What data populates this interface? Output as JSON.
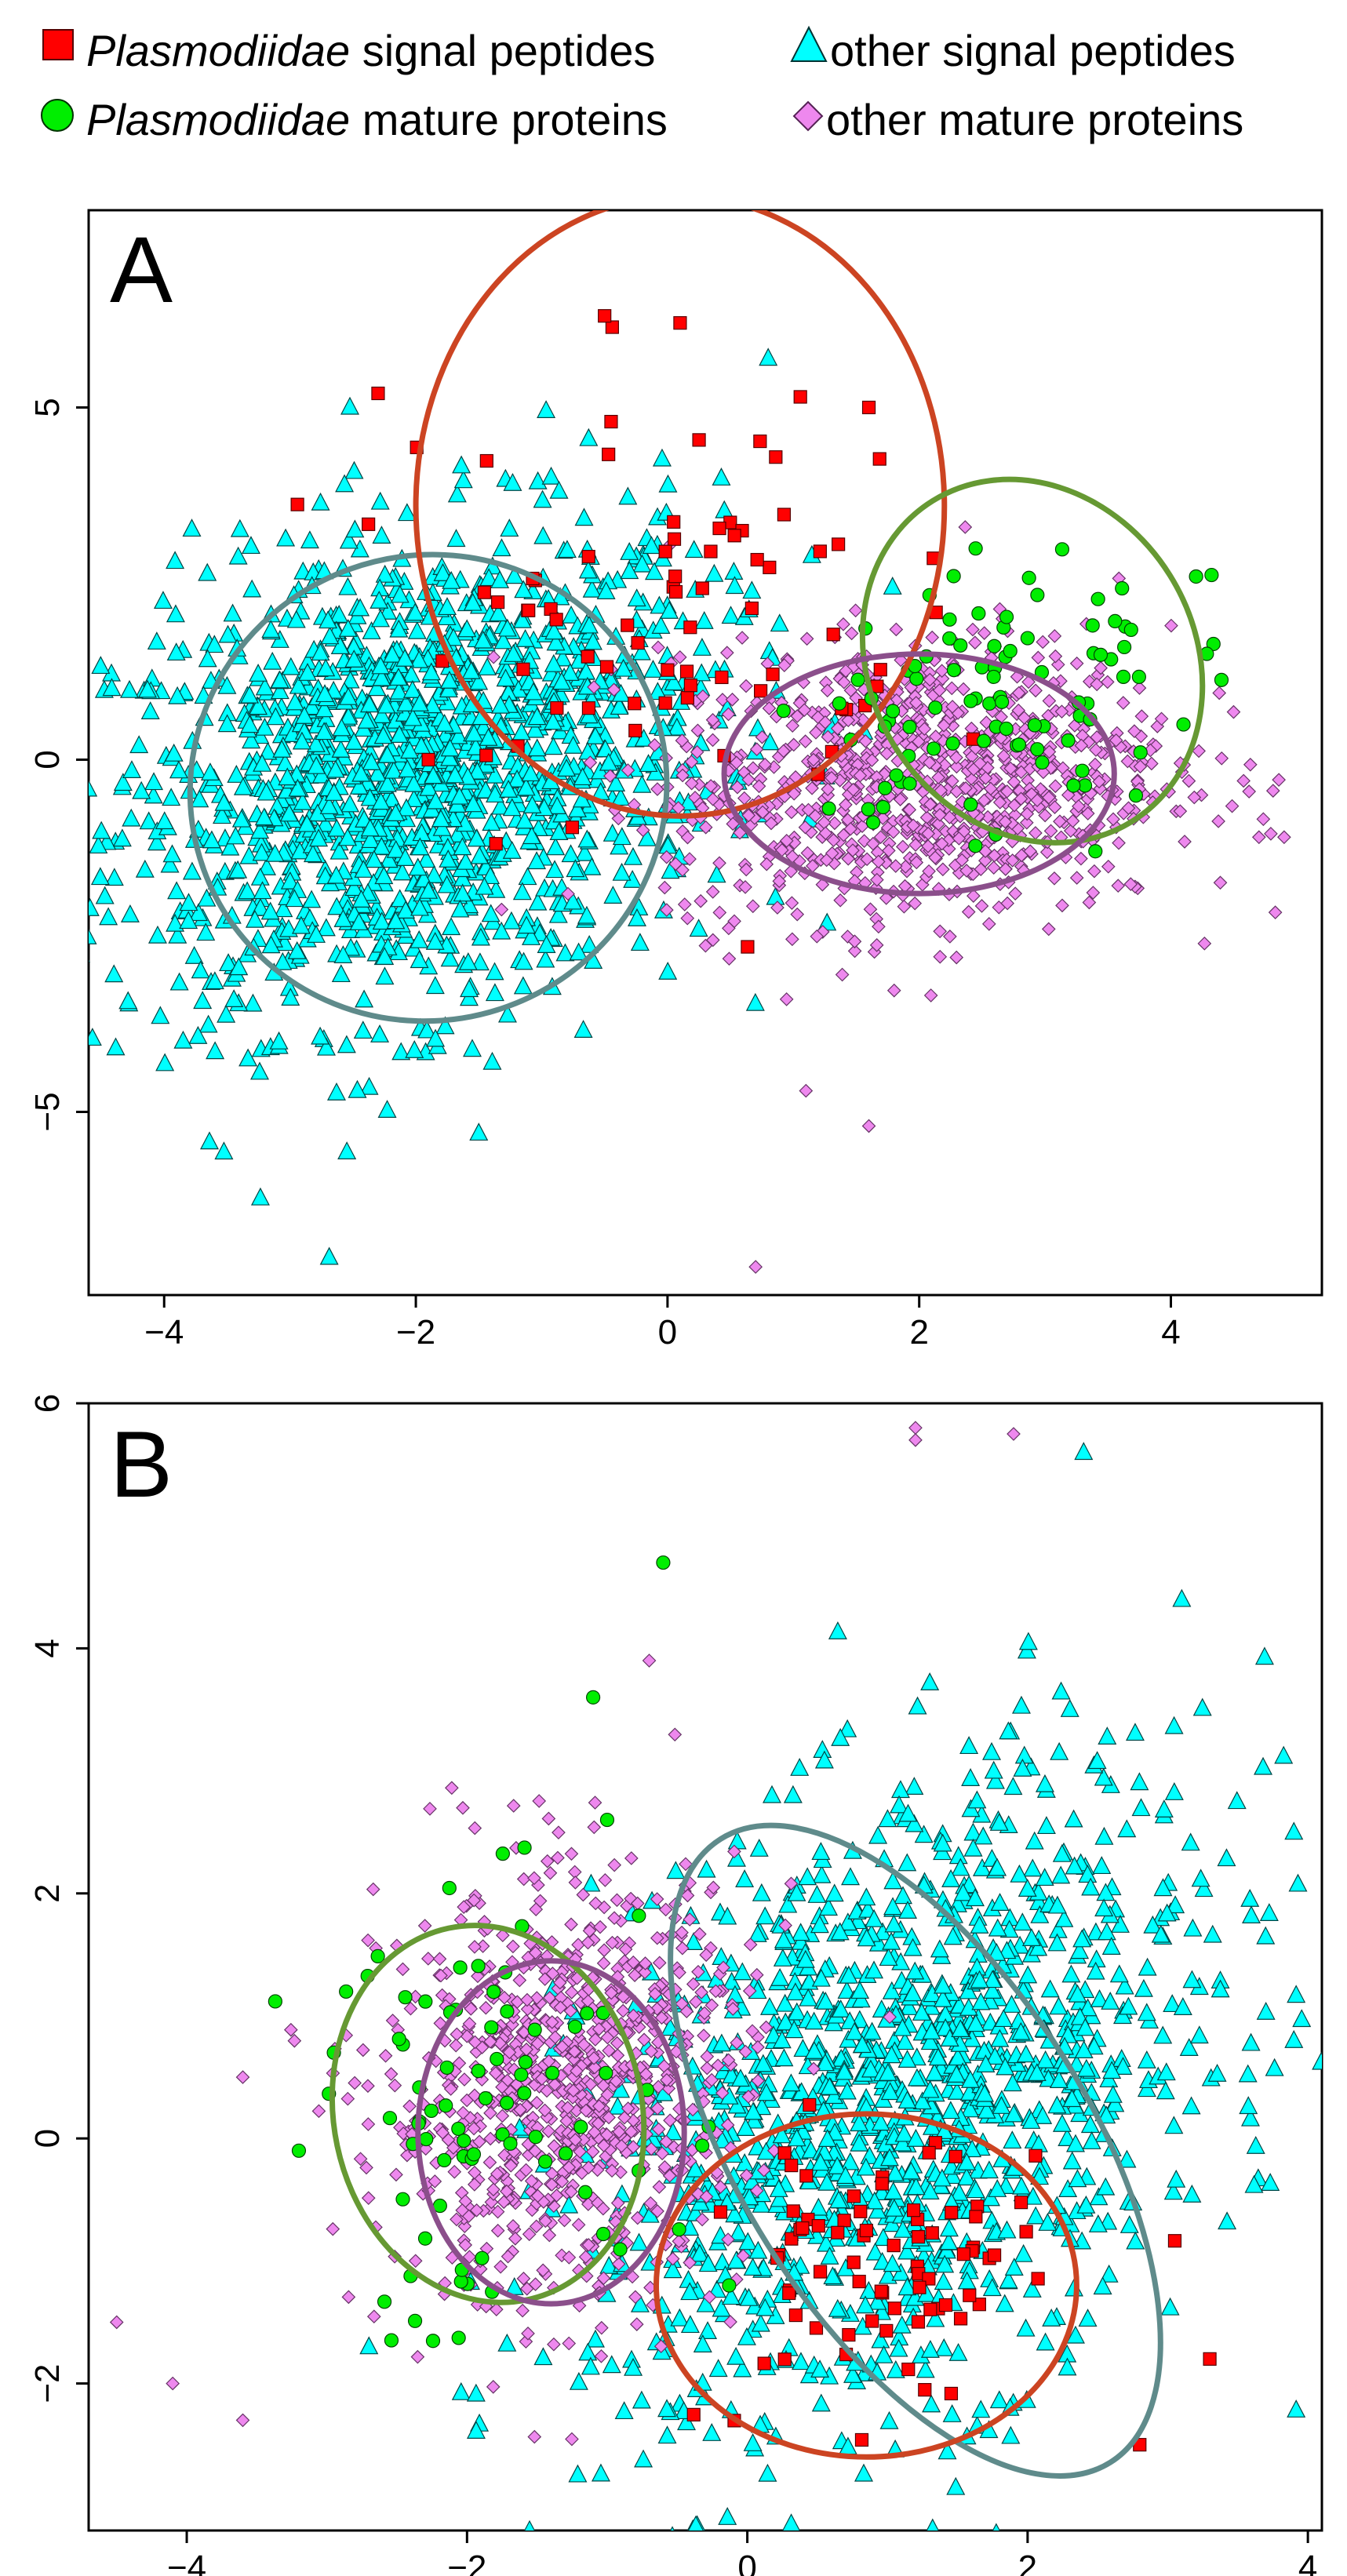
{
  "legend": {
    "items": [
      {
        "key": "plas_sig",
        "italic": "Plasmodiidae",
        "rest": " signal peptides",
        "marker": "square",
        "color": "#ff0000"
      },
      {
        "key": "other_sig",
        "italic": "",
        "rest": "other signal peptides",
        "marker": "triangle",
        "color": "#00ffff"
      },
      {
        "key": "plas_mat",
        "italic": "Plasmodiidae",
        "rest": " mature proteins",
        "marker": "circle",
        "color": "#00ee00"
      },
      {
        "key": "other_mat",
        "italic": "",
        "rest": "other mature proteins",
        "marker": "diamond",
        "color": "#ee88ee"
      }
    ]
  },
  "chart_data": [
    {
      "type": "scatter",
      "panel_label": "A",
      "xlim": [
        -4.6,
        5.2
      ],
      "ylim": [
        -7.6,
        7.8
      ],
      "xticks": [
        -4,
        -2,
        0,
        2,
        4
      ],
      "yticks": [
        -5,
        0,
        5
      ],
      "tick_labels_x": [
        "−4",
        "−2",
        "0",
        "2",
        "4"
      ],
      "tick_labels_y": [
        "−5",
        "0",
        "5"
      ],
      "clusters": {
        "other_sig": {
          "center": [
            -2.0,
            -0.2
          ],
          "sd": [
            1.2,
            1.7
          ],
          "corr": 0.25,
          "n": 1500
        },
        "other_mat": {
          "center": [
            2.0,
            -0.3
          ],
          "sd": [
            1.0,
            1.0
          ],
          "corr": 0.1,
          "n": 1000
        },
        "plas_sig": {
          "center": [
            0.0,
            2.2
          ],
          "sd": [
            1.0,
            1.6
          ],
          "corr": 0.0,
          "n": 75
        },
        "plas_mat": {
          "center": [
            2.6,
            0.9
          ],
          "sd": [
            0.7,
            1.1
          ],
          "corr": 0.3,
          "n": 90
        }
      },
      "ellipses": [
        {
          "series": "other_sig",
          "cx": -1.9,
          "cy": -0.4,
          "rx": 1.9,
          "ry": 3.3,
          "angle_deg": 20,
          "color": "#5f8b8b"
        },
        {
          "series": "plas_sig",
          "cx": 0.1,
          "cy": 3.6,
          "rx": 2.1,
          "ry": 4.4,
          "angle_deg": 0,
          "color": "#cc4422"
        },
        {
          "series": "plas_mat",
          "cx": 2.9,
          "cy": 1.4,
          "rx": 1.5,
          "ry": 2.3,
          "angle_deg": -58,
          "color": "#669933"
        },
        {
          "series": "other_mat",
          "cx": 2.0,
          "cy": -0.2,
          "rx": 1.55,
          "ry": 1.7,
          "angle_deg": 0,
          "color": "#8b4f8b"
        }
      ],
      "outliers": {
        "other_mat": [
          [
            0.7,
            -7.2
          ],
          [
            4.7,
            -1.1
          ],
          [
            4.9,
            -1.1
          ],
          [
            1.1,
            -4.7
          ],
          [
            1.6,
            -5.2
          ]
        ],
        "other_sig": [
          [
            -4.2,
            0.2
          ],
          [
            0.8,
            5.7
          ],
          [
            -1.5,
            -5.3
          ]
        ],
        "plas_sig": [
          [
            -2.3,
            5.2
          ],
          [
            -0.5,
            6.3
          ],
          [
            0.1,
            6.2
          ],
          [
            1.6,
            5.0
          ],
          [
            -1.9,
            0.0
          ]
        ],
        "plas_mat": [
          [
            4.2,
            2.6
          ],
          [
            4.1,
            0.5
          ],
          [
            3.4,
            -1.3
          ]
        ]
      }
    },
    {
      "type": "scatter",
      "panel_label": "B",
      "xlim": [
        -4.7,
        4.1
      ],
      "ylim": [
        -3.2,
        6.0
      ],
      "xticks": [
        -4,
        -2,
        0,
        2,
        4
      ],
      "yticks": [
        -2,
        0,
        2,
        4,
        6
      ],
      "tick_labels_x": [
        "−4",
        "−2",
        "0",
        "2",
        "4"
      ],
      "tick_labels_y": [
        "−2",
        "0",
        "2",
        "4",
        "6"
      ],
      "clusters": {
        "other_sig": {
          "center": [
            1.1,
            0.3
          ],
          "sd": [
            1.1,
            1.3
          ],
          "corr": 0.35,
          "n": 1300
        },
        "other_mat": {
          "center": [
            -1.3,
            0.4
          ],
          "sd": [
            0.65,
            0.85
          ],
          "corr": 0.1,
          "n": 900
        },
        "plas_sig": {
          "center": [
            0.9,
            -1.1
          ],
          "sd": [
            0.6,
            0.6
          ],
          "corr": 0.1,
          "n": 75
        },
        "plas_mat": {
          "center": [
            -1.8,
            0.2
          ],
          "sd": [
            0.7,
            0.9
          ],
          "corr": 0.2,
          "n": 80
        }
      },
      "ellipses": [
        {
          "series": "other_sig",
          "cx": 1.2,
          "cy": -0.1,
          "rx": 1.25,
          "ry": 3.0,
          "angle_deg": 32,
          "color": "#5f8b8b"
        },
        {
          "series": "plas_sig",
          "cx": 0.85,
          "cy": -1.2,
          "rx": 1.5,
          "ry": 1.4,
          "angle_deg": 0,
          "color": "#cc4422"
        },
        {
          "series": "plas_mat",
          "cx": -1.85,
          "cy": 0.2,
          "rx": 1.1,
          "ry": 1.55,
          "angle_deg": 12,
          "color": "#669933"
        },
        {
          "series": "other_mat",
          "cx": -1.4,
          "cy": 0.05,
          "rx": 0.95,
          "ry": 1.4,
          "angle_deg": 0,
          "color": "#8b4f8b"
        }
      ],
      "outliers": {
        "other_mat": [
          [
            1.2,
            5.8
          ],
          [
            1.2,
            5.7
          ],
          [
            1.9,
            5.75
          ],
          [
            -4.5,
            -1.5
          ],
          [
            -4.1,
            -2.0
          ],
          [
            -3.6,
            -2.3
          ],
          [
            -3.6,
            0.5
          ],
          [
            -0.7,
            3.9
          ]
        ],
        "other_sig": [
          [
            2.4,
            5.6
          ],
          [
            3.1,
            4.4
          ],
          [
            3.9,
            2.5
          ],
          [
            3.9,
            0.8
          ],
          [
            -2.7,
            -1.7
          ]
        ],
        "plas_sig": [
          [
            2.8,
            -2.5
          ],
          [
            3.3,
            -1.8
          ]
        ],
        "plas_mat": [
          [
            -0.6,
            4.7
          ],
          [
            -1.1,
            3.6
          ],
          [
            -3.2,
            -0.1
          ],
          [
            -1.0,
            2.6
          ]
        ]
      }
    }
  ]
}
